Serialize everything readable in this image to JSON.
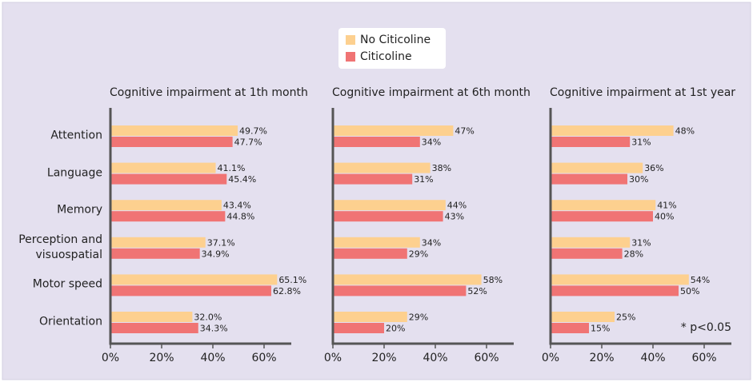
{
  "chart_data": [
    {
      "type": "bar",
      "orientation": "horizontal",
      "title": "Cognitive impairment at 1th month",
      "categories": [
        "Attention",
        "Language",
        "Memory",
        "Perception and visuospatial",
        "Motor speed",
        "Orientation"
      ],
      "series": [
        {
          "name": "No Citicoline",
          "color": "#fdd08f",
          "values": [
            49.7,
            41.1,
            43.4,
            37.1,
            65.1,
            32.0
          ],
          "value_labels": [
            "49.7%",
            "41.1%",
            "43.4%",
            "37.1%",
            "65.1%",
            "32.0%"
          ]
        },
        {
          "name": "Citicoline",
          "color": "#f07474",
          "values": [
            47.7,
            45.4,
            44.8,
            34.9,
            62.8,
            34.3
          ],
          "value_labels": [
            "47.7%",
            "45.4%",
            "44.8%",
            "34.9%",
            "62.8%",
            "34.3%"
          ]
        }
      ],
      "xlim": [
        0,
        70
      ],
      "xticks": [
        {
          "value": 0,
          "label": "0%"
        },
        {
          "value": 20,
          "label": "20%"
        },
        {
          "value": 40,
          "label": "40%"
        },
        {
          "value": 60,
          "label": "60%"
        }
      ]
    },
    {
      "type": "bar",
      "orientation": "horizontal",
      "title": "Cognitive impairment at 6th month",
      "series": [
        {
          "color": "#fdd08f",
          "values": [
            47,
            38,
            44,
            34,
            58,
            29
          ],
          "value_labels": [
            "47%",
            "38%",
            "44%",
            "34%",
            "58%",
            "29%"
          ]
        },
        {
          "color": "#f07474",
          "values": [
            34,
            31,
            43,
            29,
            52,
            20
          ],
          "value_labels": [
            "34%",
            "31%",
            "43%",
            "29%",
            "52%",
            "20%"
          ]
        }
      ],
      "xlim": [
        0,
        70
      ],
      "xticks": [
        {
          "value": 0,
          "label": "0%"
        },
        {
          "value": 20,
          "label": "20%"
        },
        {
          "value": 40,
          "label": "40%"
        },
        {
          "value": 60,
          "label": "60%"
        }
      ]
    },
    {
      "type": "bar",
      "orientation": "horizontal",
      "title": "Cognitive impairment at 1st year",
      "series": [
        {
          "color": "#fdd08f",
          "values": [
            48,
            36,
            41,
            31,
            54,
            25
          ],
          "value_labels": [
            "48%",
            "36%",
            "41%",
            "31%",
            "54%",
            "25%"
          ]
        },
        {
          "color": "#f07474",
          "values": [
            31,
            30,
            40,
            28,
            50,
            15
          ],
          "value_labels": [
            "31%",
            "30%",
            "40%",
            "28%",
            "50%",
            "15%"
          ]
        }
      ],
      "xlim": [
        0,
        70
      ],
      "xticks": [
        {
          "value": 0,
          "label": "0%"
        },
        {
          "value": 20,
          "label": "20%"
        },
        {
          "value": 40,
          "label": "40%"
        },
        {
          "value": 60,
          "label": "60%"
        }
      ],
      "annotation": "* p<0.05"
    }
  ]
}
